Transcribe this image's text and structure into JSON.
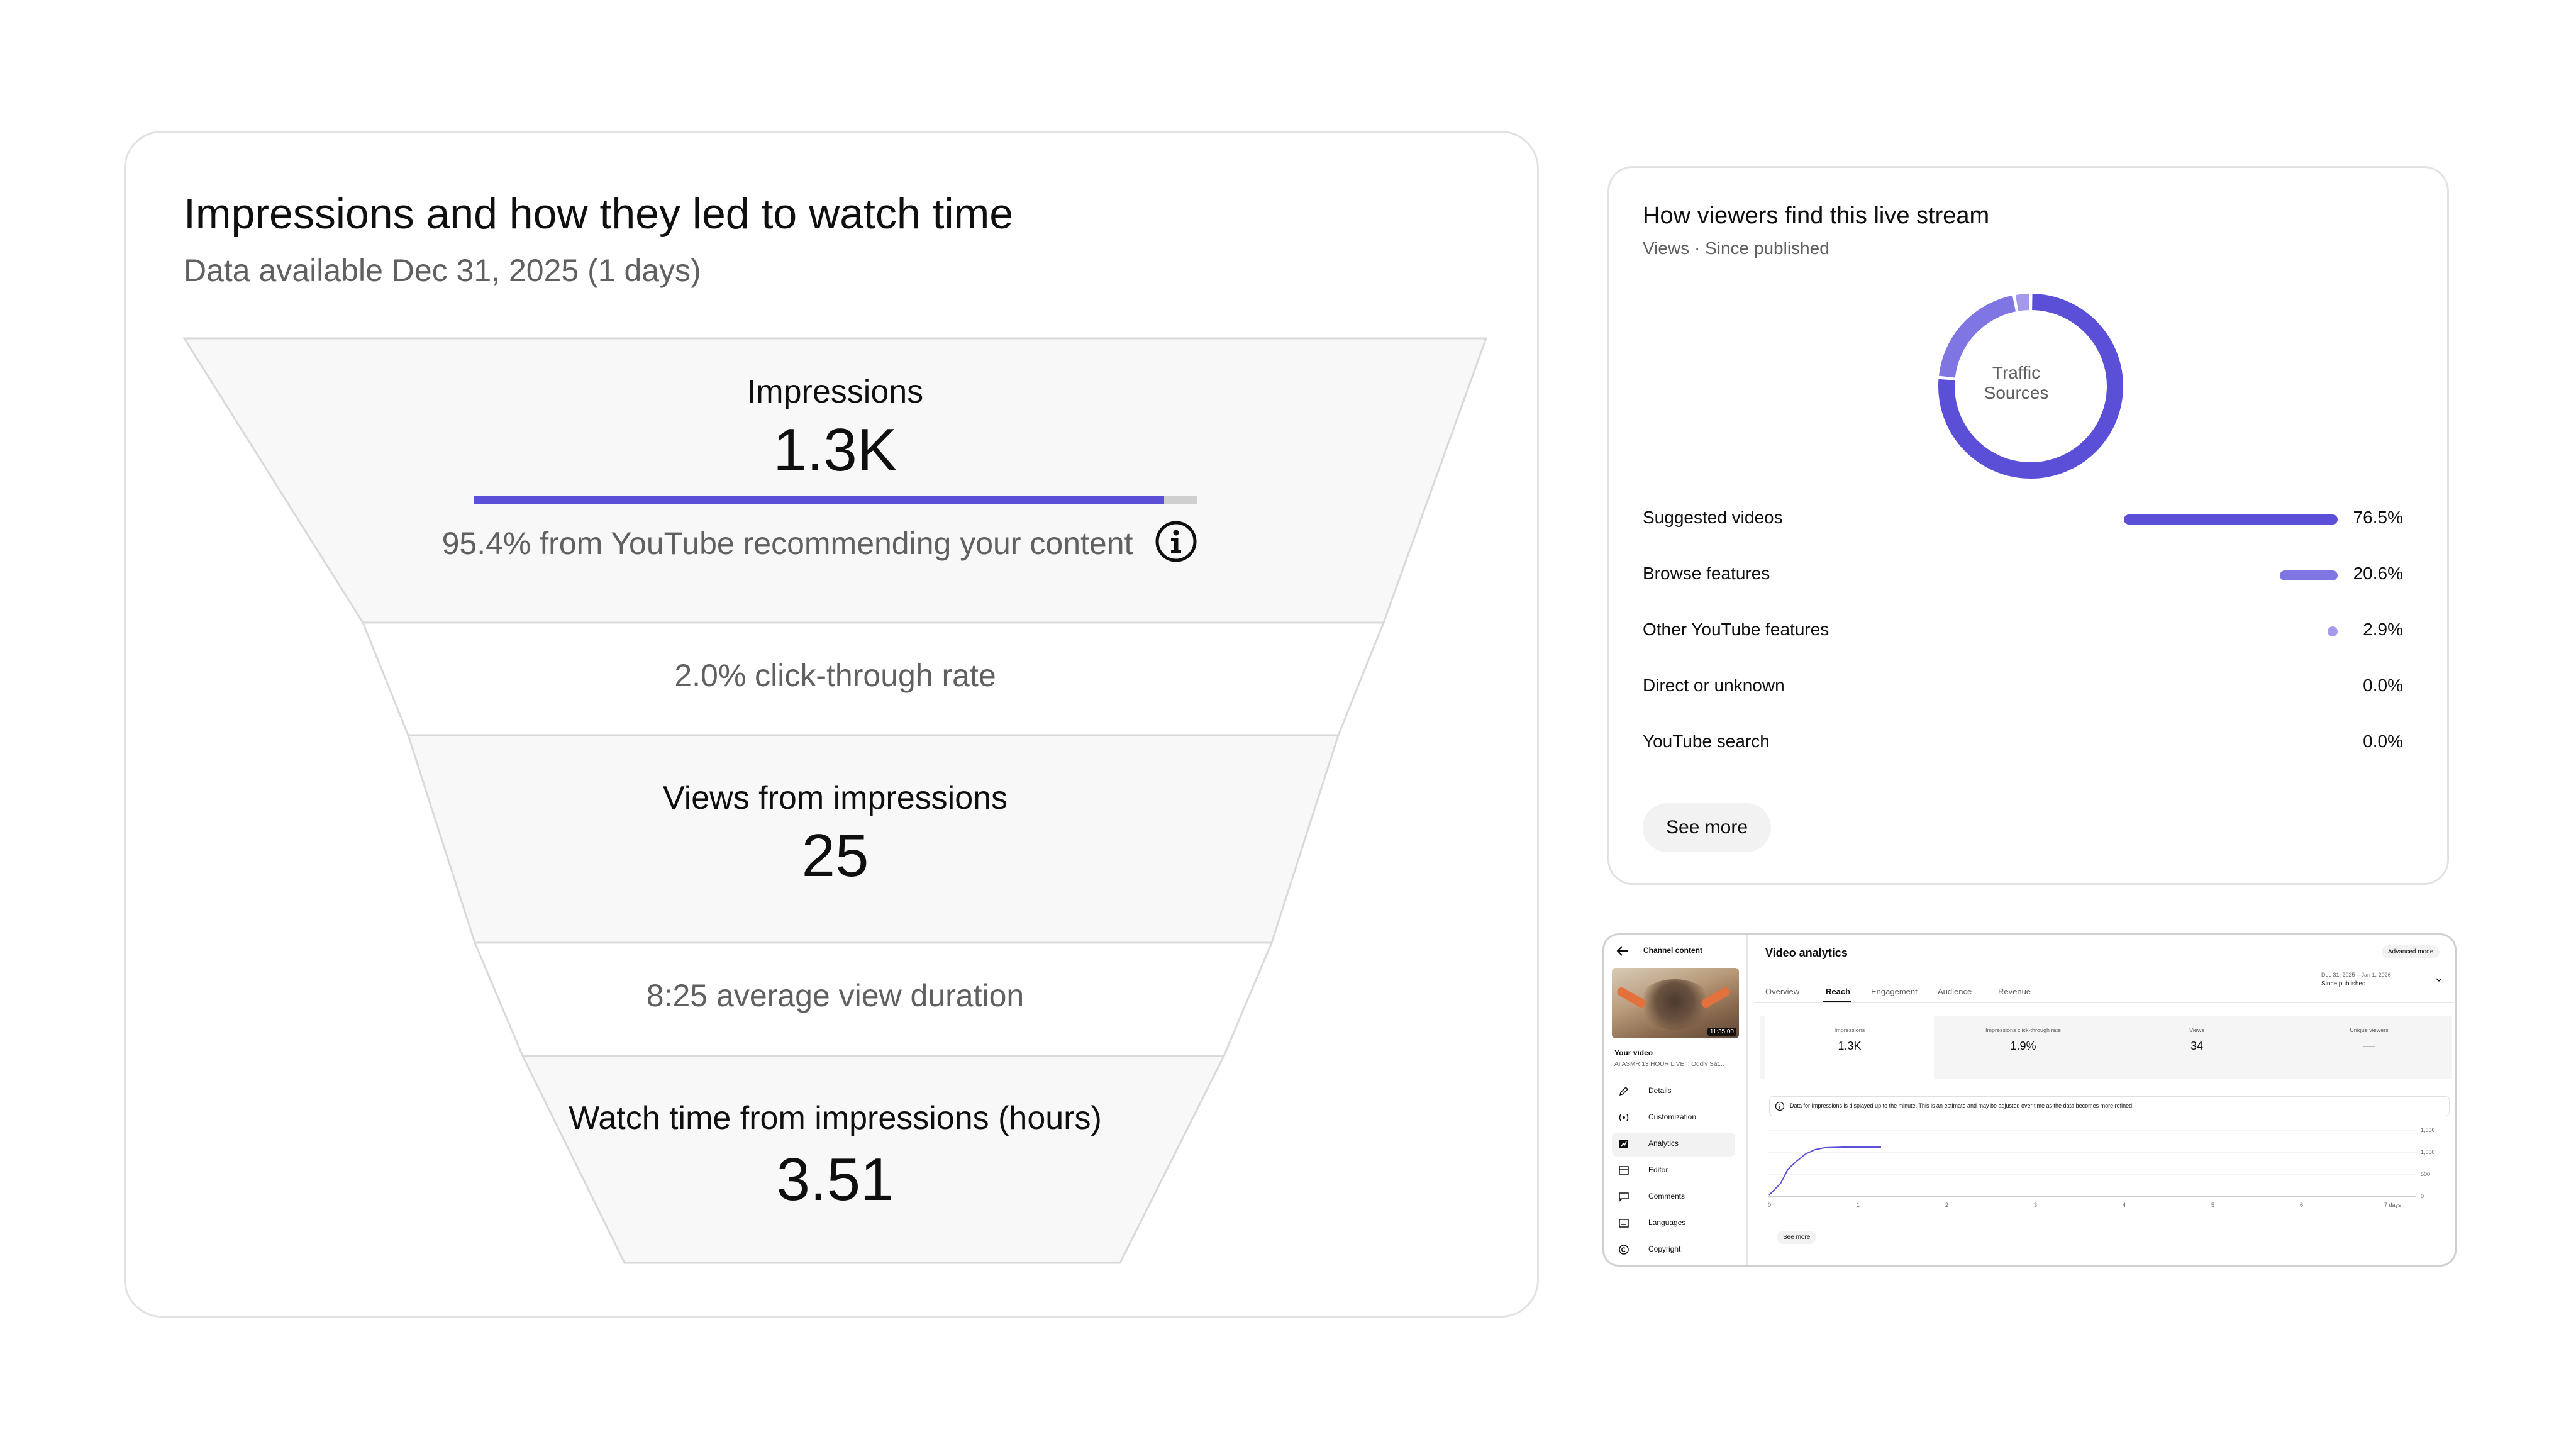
{
  "funnel": {
    "title": "Impressions and how they led to watch time",
    "subtitle": "Data available Dec 31, 2025 (1 days)",
    "impressions_label": "Impressions",
    "impressions_value": "1.3K",
    "recommended_share": 0.954,
    "recommended_text": "95.4% from YouTube recommending your content",
    "ctr_text": "2.0% click-through rate",
    "views_label": "Views from impressions",
    "views_value": "25",
    "avd_text": "8:25 average view duration",
    "watch_label": "Watch time from impressions (hours)",
    "watch_value": "3.51",
    "accent_color": "#5a4fd6",
    "info_icon": "info-circle-icon"
  },
  "traffic": {
    "title": "How viewers find this live stream",
    "subtitle": "Views · Since published",
    "donut_label_1": "Traffic",
    "donut_label_2": "Sources",
    "sources": [
      {
        "label": "Suggested videos",
        "pct": "76.5%",
        "value": 76.5,
        "color": "#5a4fd6"
      },
      {
        "label": "Browse features",
        "pct": "20.6%",
        "value": 20.6,
        "color": "#7f75e3"
      },
      {
        "label": "Other YouTube features",
        "pct": "2.9%",
        "value": 2.9,
        "color": "#a39be9"
      },
      {
        "label": "Direct or unknown",
        "pct": "0.0%",
        "value": 0.0,
        "color": "#c4bff2"
      },
      {
        "label": "YouTube search",
        "pct": "0.0%",
        "value": 0.0,
        "color": "#dcd9f7"
      }
    ],
    "see_more": "See more"
  },
  "mini": {
    "back_title": "Channel content",
    "thumb_time": "11:35:00",
    "your_video": "Your video",
    "video_title": "AI ASMR 13 HOUR LIVE :: Oddly Sat...",
    "nav": [
      "Details",
      "Customization",
      "Analytics",
      "Editor",
      "Comments",
      "Languages",
      "Copyright"
    ],
    "nav_icons": [
      "pencil-icon",
      "broadcast-icon",
      "analytics-icon",
      "editor-icon",
      "comments-icon",
      "subtitles-icon",
      "copyright-icon"
    ],
    "page_title": "Video analytics",
    "advanced": "Advanced mode",
    "date_range": "Dec 31, 2025 – Jan 1, 2026",
    "date_sub": "Since published",
    "tabs": [
      "Overview",
      "Reach",
      "Engagement",
      "Audience",
      "Revenue"
    ],
    "active_tab": "Reach",
    "metrics": [
      {
        "label": "Impressions",
        "value": "1.3K"
      },
      {
        "label": "Impressions click-through rate",
        "value": "1.9%"
      },
      {
        "label": "Views",
        "value": "34"
      },
      {
        "label": "Unique viewers",
        "value": "—"
      }
    ],
    "notice": "Data for Impressions is displayed up to the minute. This is an estimate and may be adjusted over time as the data becomes more refined.",
    "y_ticks": [
      "1,500",
      "1,000",
      "500",
      "0"
    ],
    "x_ticks": [
      "0",
      "1",
      "2",
      "3",
      "4",
      "5",
      "6",
      "7 days"
    ],
    "see_more": "See more"
  }
}
